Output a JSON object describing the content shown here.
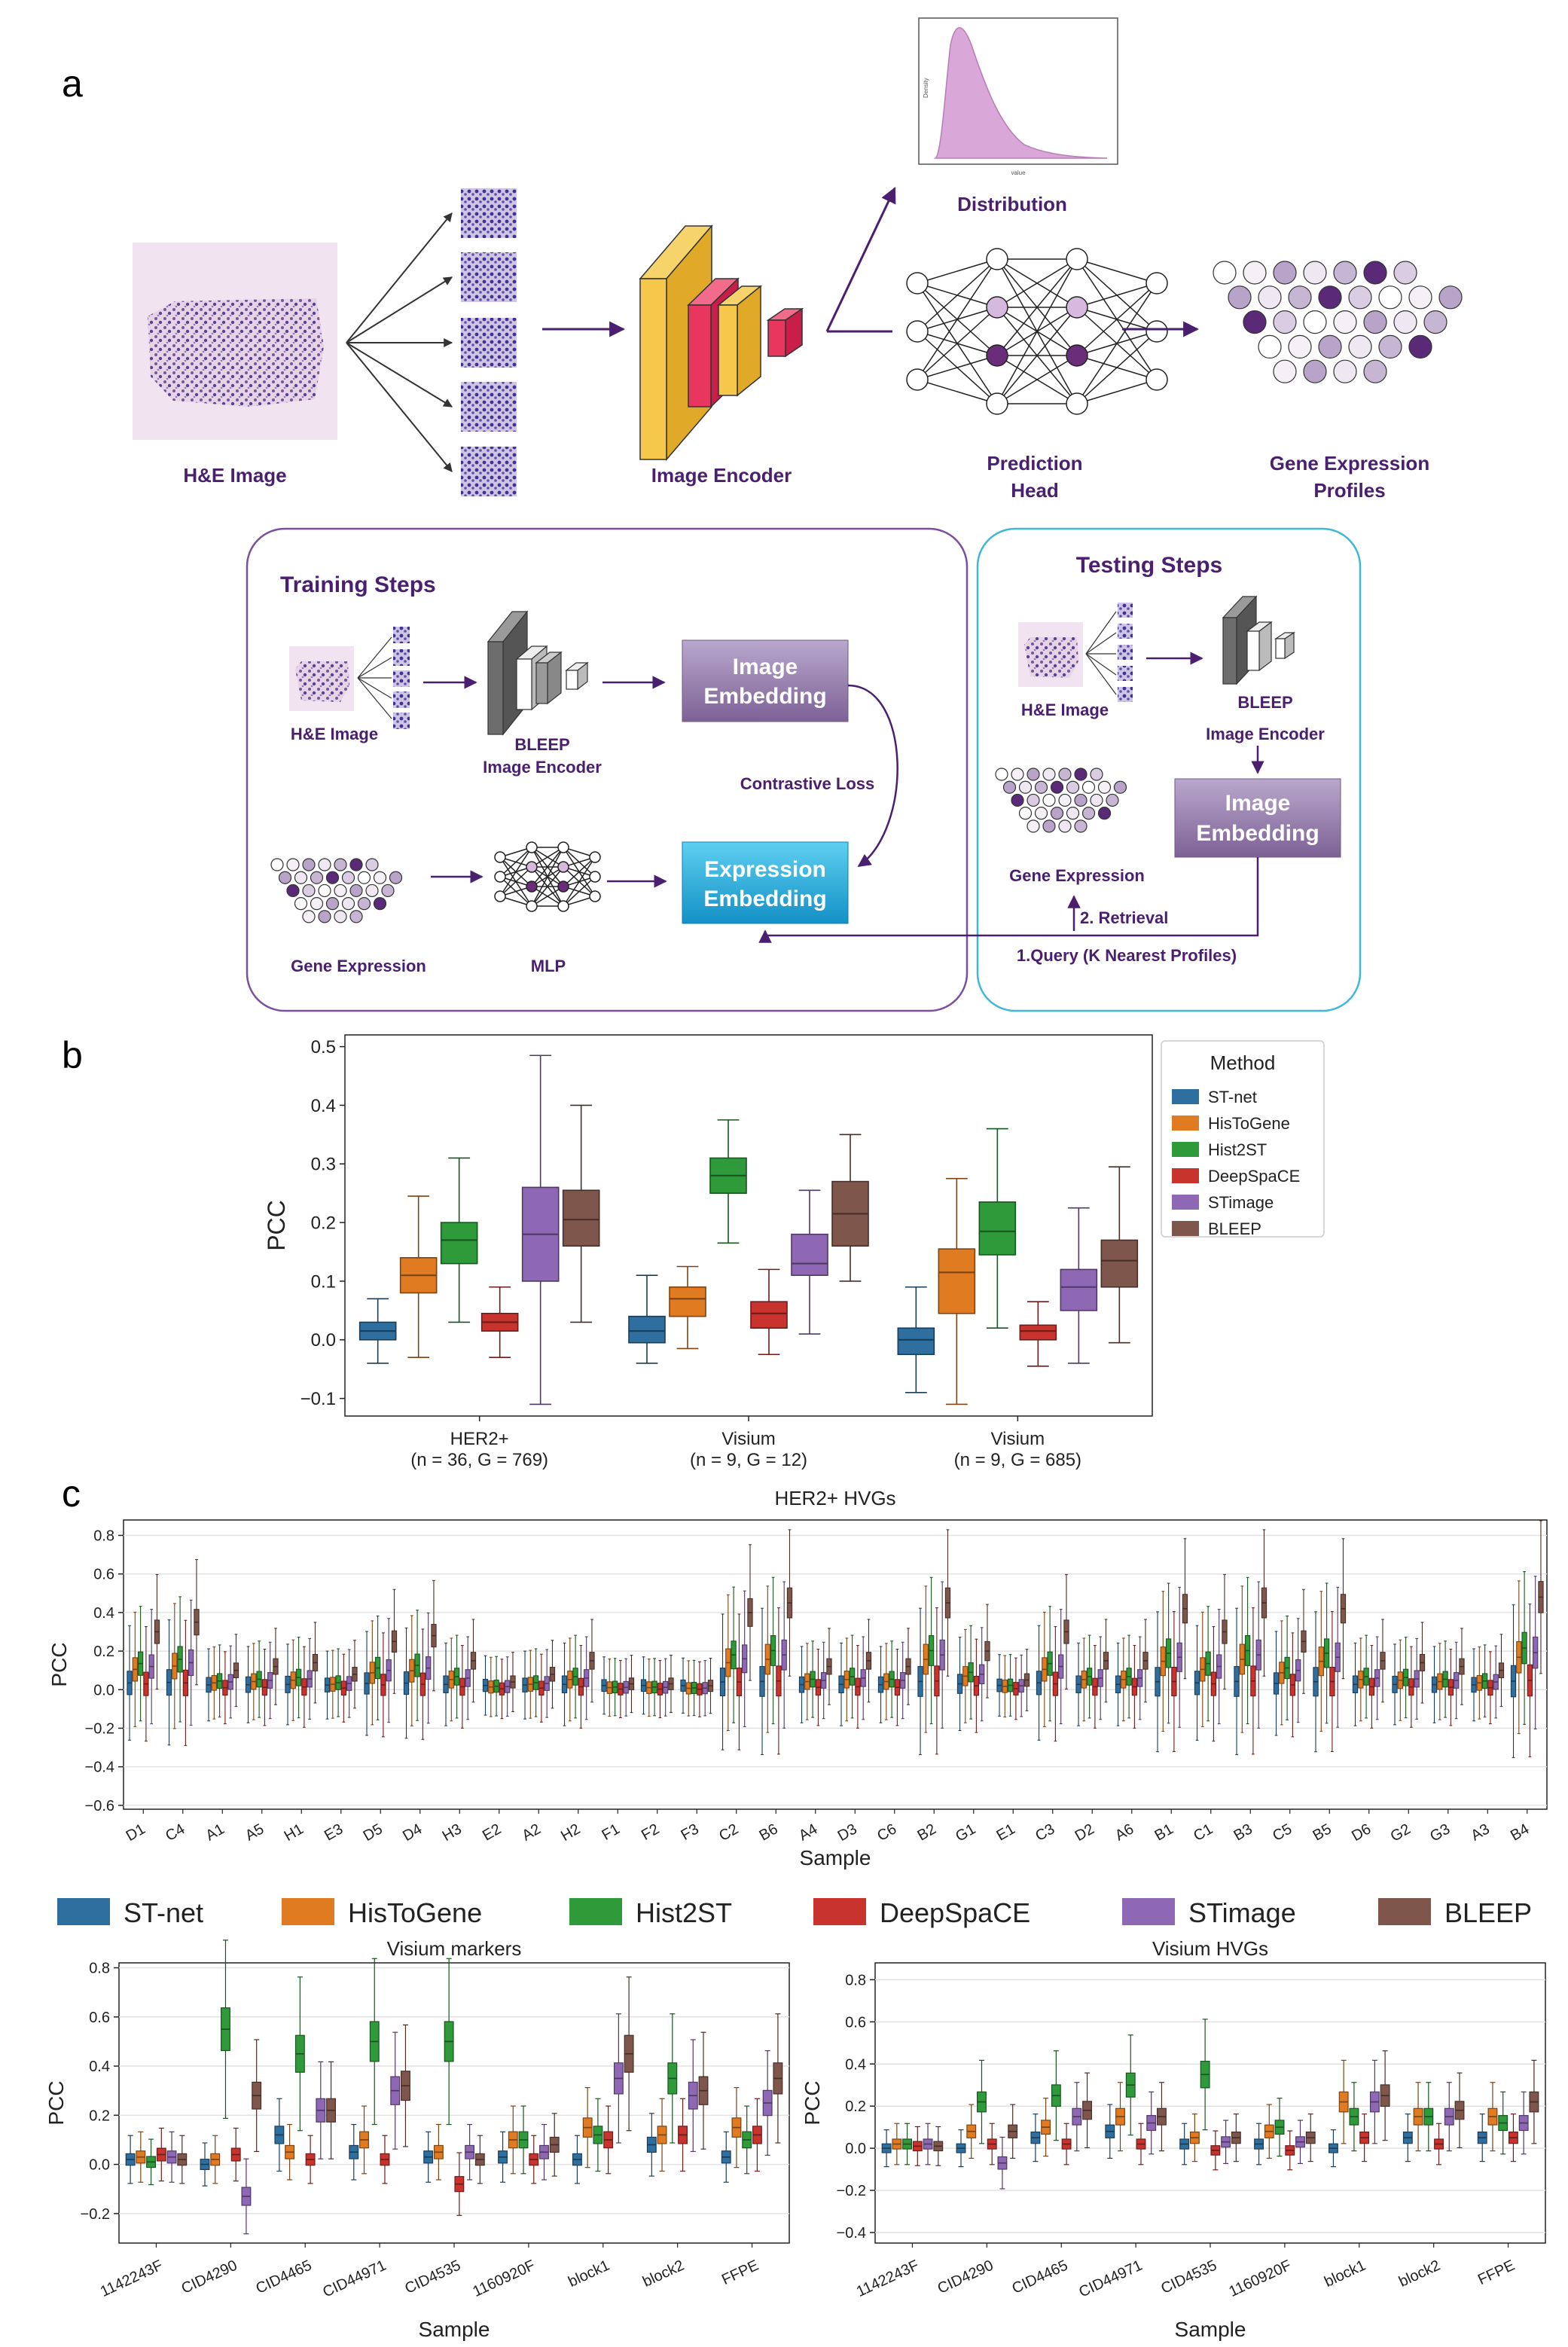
{
  "panel_letters": [
    "a",
    "b",
    "c"
  ],
  "pipeline": {
    "he_image_label": "H&E Image",
    "image_encoder_label": "Image Encoder",
    "distribution_label": "Distribution",
    "distribution_inset": {
      "ylabel": "Density",
      "xlabel": "value"
    },
    "prediction_head_label_1": "Prediction",
    "prediction_head_label_2": "Head",
    "gene_expr_label_1": "Gene Expression",
    "gene_expr_label_2": "Profiles"
  },
  "training": {
    "title": "Training Steps",
    "he_label": "H&E Image",
    "encoder_label_1": "BLEEP",
    "encoder_label_2": "Image Encoder",
    "image_embedding_1": "Image",
    "image_embedding_2": "Embedding",
    "contrastive_loss": "Contrastive Loss",
    "expression_embedding_1": "Expression",
    "expression_embedding_2": "Embedding",
    "gene_expr_label": "Gene Expression",
    "mlp_label": "MLP"
  },
  "testing": {
    "title": "Testing Steps",
    "he_label": "H&E Image",
    "encoder_label_1": "BLEEP",
    "encoder_label_2": "Image Encoder",
    "image_embedding_1": "Image",
    "image_embedding_2": "Embedding",
    "gene_expr_label": "Gene Expression",
    "retrieval": "2. Retrieval",
    "query": "1.Query (K Nearest Profiles)"
  },
  "methods": [
    "ST-net",
    "HisToGene",
    "Hist2ST",
    "DeepSpaCE",
    "STimage",
    "BLEEP"
  ],
  "colors": {
    "ST-net": "#2f6f9f",
    "HisToGene": "#e07b22",
    "Hist2ST": "#2e9a3a",
    "DeepSpaCE": "#c8332d",
    "STimage": "#8f68b5",
    "BLEEP": "#7f564b",
    "accent_purple": "#4b1f6f",
    "testing_border": "#3fb8d8",
    "training_border": "#7b4fa0"
  },
  "chart_data": [
    {
      "id": "b",
      "type": "box",
      "title": "",
      "ylabel": "PCC",
      "ylim": [
        -0.13,
        0.52
      ],
      "yticks": [
        -0.1,
        0.0,
        0.1,
        0.2,
        0.3,
        0.4,
        0.5
      ],
      "legend_title": "Method",
      "legend_position": "right",
      "categories": [
        [
          "HER2+",
          "(n = 36, G = 769)"
        ],
        [
          "Visium",
          "(n = 9, G = 12)"
        ],
        [
          "Visium",
          "(n = 9, G = 685)"
        ]
      ],
      "boxes": [
        [
          [
            -0.04,
            0.0,
            0.015,
            0.03,
            0.07
          ],
          [
            -0.03,
            0.08,
            0.11,
            0.14,
            0.245
          ],
          [
            0.03,
            0.13,
            0.17,
            0.2,
            0.31
          ],
          [
            -0.03,
            0.015,
            0.03,
            0.045,
            0.09
          ],
          [
            -0.11,
            0.1,
            0.18,
            0.26,
            0.485
          ],
          [
            0.03,
            0.16,
            0.205,
            0.255,
            0.4
          ]
        ],
        [
          [
            -0.04,
            -0.005,
            0.015,
            0.04,
            0.11
          ],
          [
            -0.015,
            0.04,
            0.07,
            0.09,
            0.125
          ],
          [
            0.165,
            0.25,
            0.28,
            0.31,
            0.375
          ],
          [
            -0.025,
            0.02,
            0.045,
            0.065,
            0.12
          ],
          [
            0.01,
            0.11,
            0.13,
            0.18,
            0.255
          ],
          [
            0.1,
            0.16,
            0.215,
            0.27,
            0.35
          ]
        ],
        [
          [
            -0.09,
            -0.025,
            0.0,
            0.02,
            0.09
          ],
          [
            -0.11,
            0.045,
            0.115,
            0.155,
            0.275
          ],
          [
            0.02,
            0.145,
            0.185,
            0.235,
            0.36
          ],
          [
            -0.045,
            0.0,
            0.015,
            0.025,
            0.065
          ],
          [
            -0.04,
            0.05,
            0.09,
            0.12,
            0.225
          ],
          [
            -0.005,
            0.09,
            0.135,
            0.17,
            0.295
          ]
        ]
      ]
    },
    {
      "id": "c-her2",
      "type": "box",
      "title": "HER2+ HVGs",
      "ylabel": "PCC",
      "xlabel": "Sample",
      "ylim": [
        -0.62,
        0.88
      ],
      "yticks": [
        -0.6,
        -0.4,
        -0.2,
        0.0,
        0.2,
        0.4,
        0.6,
        0.8
      ],
      "categories": [
        "D1",
        "C4",
        "A1",
        "A5",
        "H1",
        "E3",
        "D5",
        "D4",
        "H3",
        "E2",
        "A2",
        "H2",
        "F1",
        "F2",
        "F3",
        "C2",
        "B6",
        "A4",
        "D3",
        "C6",
        "B2",
        "G1",
        "E1",
        "C3",
        "D2",
        "A6",
        "B1",
        "C1",
        "B3",
        "C5",
        "B5",
        "D6",
        "G2",
        "G3",
        "A3",
        "B4"
      ],
      "bleep_medians": [
        0.3,
        0.35,
        0.1,
        0.12,
        0.14,
        0.08,
        0.25,
        0.28,
        0.15,
        0.04,
        0.08,
        0.15,
        0.03,
        0.03,
        0.02,
        0.4,
        0.45,
        0.12,
        0.15,
        0.12,
        0.45,
        0.2,
        0.05,
        0.3,
        0.15,
        0.15,
        0.42,
        0.3,
        0.45,
        0.25,
        0.42,
        0.15,
        0.14,
        0.12,
        0.1,
        0.48
      ]
    },
    {
      "id": "c-visium-markers",
      "type": "box",
      "title": "Visium markers",
      "ylabel": "PCC",
      "xlabel": "Sample",
      "ylim": [
        -0.32,
        0.82
      ],
      "yticks": [
        -0.2,
        0.0,
        0.2,
        0.4,
        0.6,
        0.8
      ],
      "categories": [
        "1142243F",
        "CID4290",
        "CID4465",
        "CID44971",
        "CID4535",
        "1160920F",
        "block1",
        "block2",
        "FFPE"
      ],
      "medians": [
        [
          0.02,
          0.03,
          0.01,
          0.04,
          0.03,
          0.02
        ],
        [
          0.0,
          0.02,
          0.55,
          0.04,
          -0.13,
          0.28
        ],
        [
          0.12,
          0.05,
          0.45,
          0.02,
          0.22,
          0.22
        ],
        [
          0.05,
          0.1,
          0.5,
          0.02,
          0.3,
          0.32
        ],
        [
          0.03,
          0.05,
          0.5,
          -0.08,
          0.05,
          0.02
        ],
        [
          0.03,
          0.1,
          0.1,
          0.02,
          0.05,
          0.08
        ],
        [
          0.02,
          0.15,
          0.12,
          0.1,
          0.35,
          0.45
        ],
        [
          0.08,
          0.12,
          0.35,
          0.12,
          0.28,
          0.3
        ],
        [
          0.03,
          0.15,
          0.1,
          0.12,
          0.25,
          0.35
        ]
      ]
    },
    {
      "id": "c-visium-hvgs",
      "type": "box",
      "title": "Visium HVGs",
      "ylabel": "PCC",
      "xlabel": "Sample",
      "ylim": [
        -0.45,
        0.88
      ],
      "yticks": [
        -0.4,
        -0.2,
        0.0,
        0.2,
        0.4,
        0.6,
        0.8
      ],
      "categories": [
        "1142243F",
        "CID4290",
        "CID4465",
        "CID44971",
        "CID4535",
        "1160920F",
        "block1",
        "block2",
        "FFPE"
      ],
      "medians": [
        [
          0.0,
          0.02,
          0.02,
          0.01,
          0.02,
          0.01
        ],
        [
          0.0,
          0.08,
          0.22,
          0.02,
          -0.07,
          0.08
        ],
        [
          0.05,
          0.1,
          0.25,
          0.02,
          0.15,
          0.18
        ],
        [
          0.08,
          0.15,
          0.3,
          0.02,
          0.12,
          0.15
        ],
        [
          0.02,
          0.05,
          0.35,
          -0.01,
          0.03,
          0.05
        ],
        [
          0.02,
          0.08,
          0.1,
          -0.01,
          0.03,
          0.05
        ],
        [
          0.0,
          0.22,
          0.15,
          0.05,
          0.22,
          0.25
        ],
        [
          0.05,
          0.15,
          0.15,
          0.02,
          0.15,
          0.18
        ],
        [
          0.05,
          0.15,
          0.12,
          0.05,
          0.12,
          0.22
        ]
      ]
    }
  ]
}
